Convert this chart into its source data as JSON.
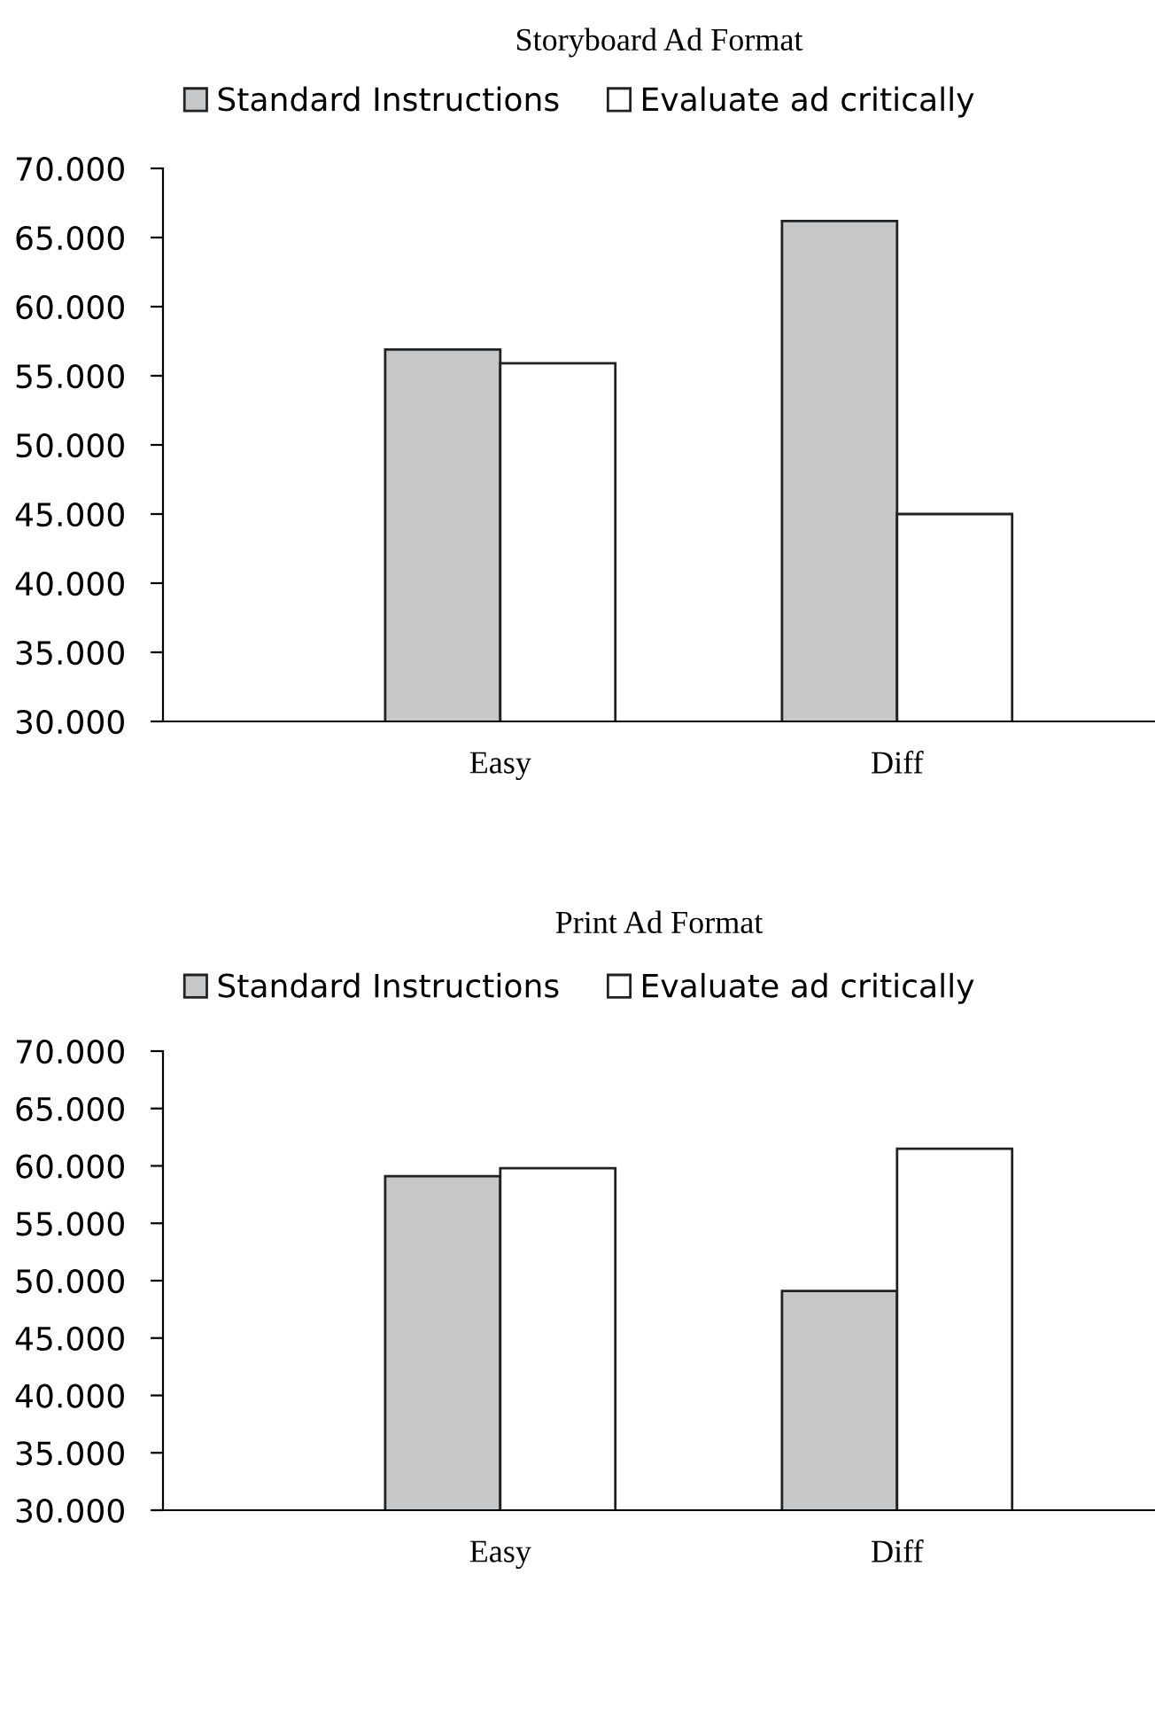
{
  "chart_data": [
    {
      "type": "bar",
      "title": "Storyboard Ad Format",
      "categories": [
        "Easy",
        "Diff"
      ],
      "series": [
        {
          "name": "Standard Instructions",
          "color": "#c6c7c9",
          "values": [
            56.9,
            66.2
          ]
        },
        {
          "name": "Evaluate ad critically",
          "color": "#ffffff",
          "values": [
            55.9,
            45.0
          ]
        }
      ],
      "ylim": [
        30,
        70
      ],
      "yticks": [
        {
          "value": 30,
          "label": "30.000"
        },
        {
          "value": 35,
          "label": "35.000"
        },
        {
          "value": 40,
          "label": "40.000"
        },
        {
          "value": 45,
          "label": "45.000"
        },
        {
          "value": 50,
          "label": "50.000"
        },
        {
          "value": 55,
          "label": "55.000"
        },
        {
          "value": 60,
          "label": "60.000"
        },
        {
          "value": 65,
          "label": "65.000"
        },
        {
          "value": 70,
          "label": "70.000"
        }
      ],
      "grid": false,
      "legend": "top"
    },
    {
      "type": "bar",
      "title": "Print Ad Format",
      "categories": [
        "Easy",
        "Diff"
      ],
      "series": [
        {
          "name": "Standard Instructions",
          "color": "#c6c7c9",
          "values": [
            59.1,
            49.1
          ]
        },
        {
          "name": "Evaluate ad critically",
          "color": "#ffffff",
          "values": [
            59.8,
            61.5
          ]
        }
      ],
      "ylim": [
        30,
        70
      ],
      "yticks": [
        {
          "value": 30,
          "label": "30.000"
        },
        {
          "value": 35,
          "label": "35.000"
        },
        {
          "value": 40,
          "label": "40.000"
        },
        {
          "value": 45,
          "label": "45.000"
        },
        {
          "value": 50,
          "label": "50.000"
        },
        {
          "value": 55,
          "label": "55.000"
        },
        {
          "value": 60,
          "label": "60.000"
        },
        {
          "value": 65,
          "label": "65.000"
        },
        {
          "value": 70,
          "label": "70.000"
        }
      ],
      "grid": false,
      "legend": "top"
    }
  ]
}
